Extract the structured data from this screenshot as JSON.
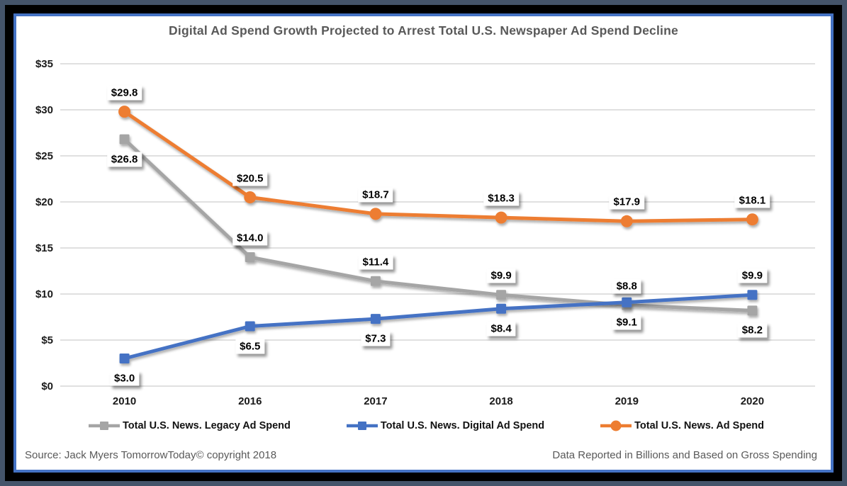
{
  "chart_data": {
    "type": "line",
    "title": "Digital Ad Spend Growth Projected to Arrest Total U.S. Newspaper Ad Spend Decline",
    "categories": [
      "2010",
      "2016",
      "2017",
      "2018",
      "2019",
      "2020"
    ],
    "series": [
      {
        "name": "Total U.S. News. Legacy Ad Spend",
        "color": "#A5A5A5",
        "marker": "square",
        "values": [
          26.8,
          14.0,
          11.4,
          9.9,
          8.8,
          8.2
        ],
        "label_positions": [
          "below",
          "above",
          "above",
          "above",
          "above",
          "below"
        ]
      },
      {
        "name": "Total U.S. News. Digital Ad Spend",
        "color": "#4472C4",
        "marker": "square",
        "values": [
          3.0,
          6.5,
          7.3,
          8.4,
          9.1,
          9.9
        ],
        "label_positions": [
          "below",
          "below",
          "below",
          "below",
          "below",
          "above"
        ]
      },
      {
        "name": "Total U.S. News. Ad Spend",
        "color": "#ED7D31",
        "marker": "circle",
        "values": [
          29.8,
          20.5,
          18.7,
          18.3,
          17.9,
          18.1
        ],
        "label_positions": [
          "above",
          "above",
          "above",
          "above",
          "above",
          "above"
        ]
      }
    ],
    "ylim": [
      0,
      35
    ],
    "ytick_step": 5,
    "ytick_labels": [
      "$0",
      "$5",
      "$10",
      "$15",
      "$20",
      "$25",
      "$30",
      "$35"
    ],
    "currency_prefix": "$",
    "data_label_decimals": 1,
    "grid": true,
    "legend_position": "bottom"
  },
  "footer": {
    "source": "Source: Jack Myers TomorrowToday© copyright 2018",
    "note": "Data Reported in Billions and Based on Gross Spending"
  },
  "colors": {
    "frame_outer": "#44546A",
    "frame_mid": "#000000",
    "frame_inner": "#4472C4",
    "gridline": "#D6D6D6",
    "title_text": "#595959",
    "tick_text": "#1a1a1a",
    "footer_text": "#595959",
    "label_bg": "#FFFFFF"
  }
}
